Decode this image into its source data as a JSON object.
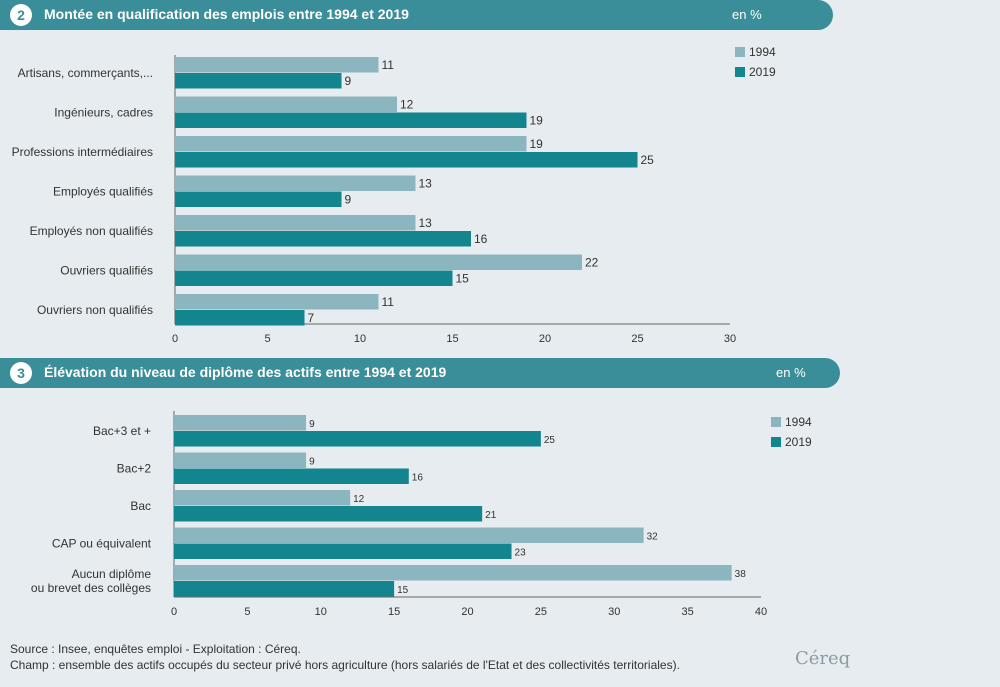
{
  "colors": {
    "c1994": "#8cb6bf",
    "c2019": "#13858f",
    "header": "#3a8e99"
  },
  "chart_data": [
    {
      "type": "bar",
      "orientation": "horizontal",
      "number": "2",
      "title": "Montée en qualification des emplois entre 1994 et 2019",
      "unit": "en %",
      "categories": [
        "Artisans, commerçants,...",
        "Ingénieurs, cadres",
        "Professions intermédiaires",
        "Employés qualifiés",
        "Employés non qualifiés",
        "Ouvriers qualifiés",
        "Ouvriers non qualifiés"
      ],
      "series": [
        {
          "name": "1994",
          "values": [
            11,
            12,
            19,
            13,
            13,
            22,
            11
          ]
        },
        {
          "name": "2019",
          "values": [
            9,
            19,
            25,
            9,
            16,
            15,
            7
          ]
        }
      ],
      "xlim": [
        0,
        30
      ],
      "xticks": [
        0,
        5,
        10,
        15,
        20,
        25,
        30
      ],
      "legend": "top-right",
      "grid": false
    },
    {
      "type": "bar",
      "orientation": "horizontal",
      "number": "3",
      "title": "Élévation du niveau de diplôme des actifs entre 1994 et 2019",
      "unit": "en %",
      "categories": [
        "Bac+3 et +",
        "Bac+2",
        "Bac",
        "CAP ou équivalent",
        "Aucun diplôme\nou brevet des collèges"
      ],
      "series": [
        {
          "name": "1994",
          "values": [
            9,
            9,
            12,
            32,
            38
          ]
        },
        {
          "name": "2019",
          "values": [
            25,
            16,
            21,
            23,
            15
          ]
        }
      ],
      "xlim": [
        0,
        40
      ],
      "xticks": [
        0,
        5,
        10,
        15,
        20,
        25,
        30,
        35,
        40
      ],
      "legend": "top-right",
      "grid": false
    }
  ],
  "footer": {
    "source": "Source : Insee, enquêtes emploi - Exploitation : Céreq.",
    "champ": "Champ : ensemble des actifs occupés du secteur privé hors agriculture (hors salariés de l'Etat et des collectivités territoriales)."
  },
  "logo_text": "Céreq"
}
